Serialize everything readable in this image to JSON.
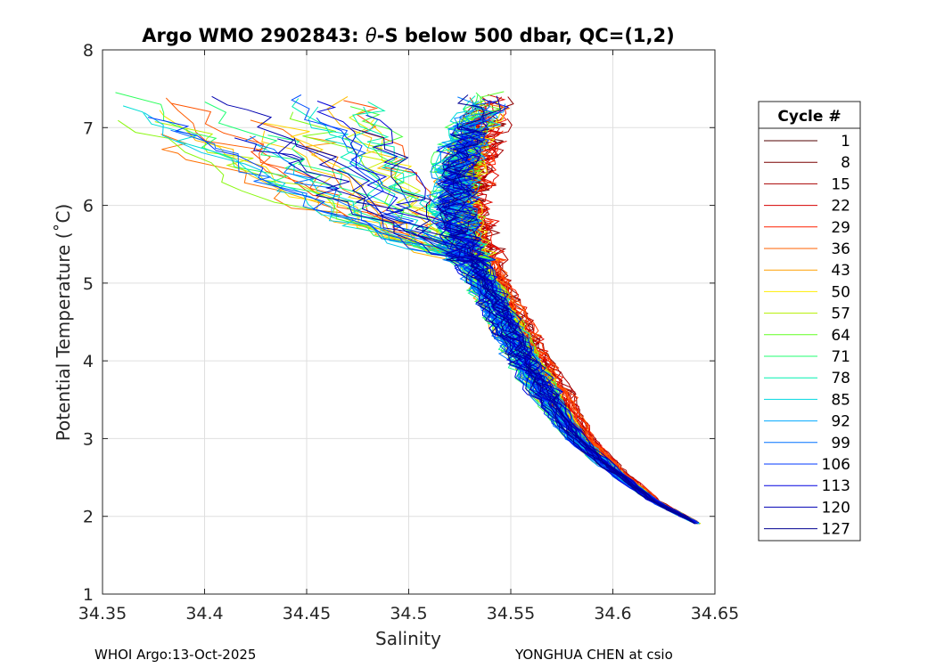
{
  "chart_data": {
    "type": "line",
    "title_prefix": "Argo WMO 2902843: ",
    "title_theta": "θ",
    "title_suffix": "-S below 500 dbar,  QC=(1,2)",
    "xlabel": "Salinity",
    "ylabel": "Potential Temperature (˚C)",
    "xlim": [
      34.35,
      34.65
    ],
    "ylim": [
      1,
      8
    ],
    "x_ticks": [
      34.35,
      34.4,
      34.45,
      34.5,
      34.55,
      34.6,
      34.65
    ],
    "x_tick_labels": [
      "34.35",
      "34.4",
      "34.45",
      "34.5",
      "34.55",
      "34.6",
      "34.65"
    ],
    "y_ticks": [
      1,
      2,
      3,
      4,
      5,
      6,
      7,
      8
    ],
    "y_tick_labels": [
      "1",
      "2",
      "3",
      "4",
      "5",
      "6",
      "7",
      "8"
    ],
    "grid": true,
    "legend_title": "Cycle #",
    "legend_position": "right",
    "series": [
      {
        "name": "1",
        "color": "#500000"
      },
      {
        "name": "8",
        "color": "#7a0000"
      },
      {
        "name": "15",
        "color": "#a80000"
      },
      {
        "name": "22",
        "color": "#d40000"
      },
      {
        "name": "29",
        "color": "#ff2000"
      },
      {
        "name": "36",
        "color": "#ff6000"
      },
      {
        "name": "43",
        "color": "#ffa000"
      },
      {
        "name": "50",
        "color": "#ffee00"
      },
      {
        "name": "57",
        "color": "#b4f000"
      },
      {
        "name": "64",
        "color": "#60ff20"
      },
      {
        "name": "71",
        "color": "#20ff70"
      },
      {
        "name": "78",
        "color": "#00f0b0"
      },
      {
        "name": "85",
        "color": "#00d8e0"
      },
      {
        "name": "92",
        "color": "#00a8ff"
      },
      {
        "name": "99",
        "color": "#0070ff"
      },
      {
        "name": "106",
        "color": "#0038ff"
      },
      {
        "name": "113",
        "color": "#0000e0"
      },
      {
        "name": "120",
        "color": "#0000b4"
      },
      {
        "name": "127",
        "color": "#000090"
      }
    ],
    "envelope": {
      "spine": [
        [
          34.642,
          1.9
        ],
        [
          34.62,
          2.2
        ],
        [
          34.6,
          2.6
        ],
        [
          34.583,
          3.0
        ],
        [
          34.57,
          3.5
        ],
        [
          34.558,
          4.0
        ],
        [
          34.548,
          4.5
        ],
        [
          34.538,
          5.0
        ],
        [
          34.528,
          5.5
        ],
        [
          34.524,
          6.0
        ],
        [
          34.526,
          6.5
        ],
        [
          34.532,
          7.0
        ],
        [
          34.538,
          7.3
        ]
      ],
      "warm_branch_min_salinity": [
        34.36,
        34.38,
        34.42,
        34.44,
        34.47,
        34.49
      ],
      "profile_count": 128
    }
  },
  "footer": {
    "left": "WHOI Argo:13-Oct-2025",
    "right": "YONGHUA CHEN at csio"
  }
}
